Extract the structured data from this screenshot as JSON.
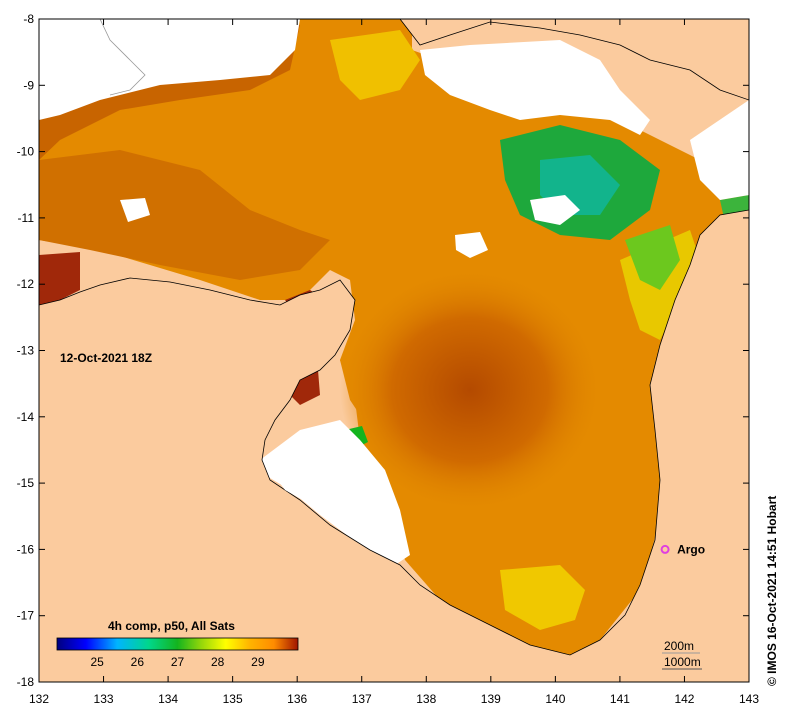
{
  "map": {
    "date_label": "12-Oct-2021 18Z",
    "colorbar": {
      "title": "4h comp, p50, All Sats",
      "ticks": [
        "25",
        "26",
        "27",
        "28",
        "29"
      ],
      "range": [
        24,
        30
      ],
      "stops": [
        "#00007f",
        "#0000ff",
        "#00b4ff",
        "#00d78c",
        "#14b41e",
        "#96d70a",
        "#ffff00",
        "#ffb400",
        "#ff8c00",
        "#a01400"
      ]
    },
    "x_ticks": [
      "132",
      "133",
      "134",
      "135",
      "136",
      "137",
      "138",
      "139",
      "140",
      "141",
      "142",
      "143"
    ],
    "y_ticks": [
      "-8",
      "-9",
      "-10",
      "-11",
      "-12",
      "-13",
      "-14",
      "-15",
      "-16",
      "-17",
      "-18"
    ],
    "lon_range": [
      132,
      143
    ],
    "lat_range": [
      -18,
      -8
    ],
    "argo": {
      "label": "Argo",
      "lon": 141.7,
      "lat": -16.0,
      "color": "#e040e0"
    },
    "depth_legend": [
      "200m",
      "1000m"
    ],
    "credit": "© IMOS 16-Oct-2021 14:51 Hobart",
    "colors": {
      "land": "#fbcb9e",
      "no_data": "#ffffff",
      "sst_warm": "#c85a00",
      "sst_mid": "#e48a00",
      "sst_cool": "#f4c000"
    }
  }
}
